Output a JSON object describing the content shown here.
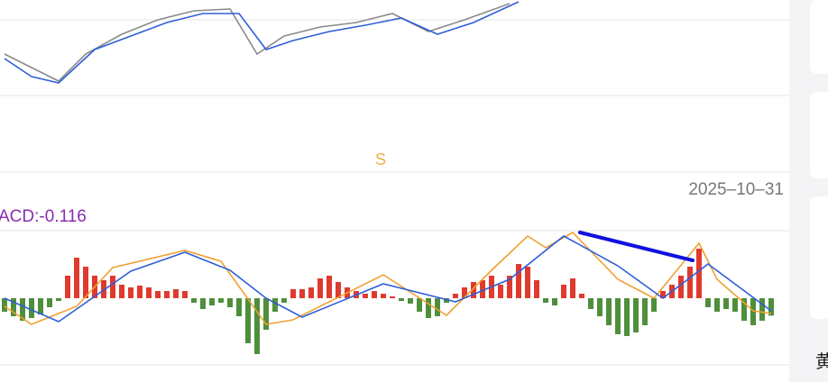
{
  "chart_data": [
    {
      "type": "line",
      "annotations": [
        "S",
        "2025–10–31"
      ],
      "xlim": [
        -0.5,
        85.5
      ],
      "ylim": [
        0,
        110
      ],
      "series": [
        {
          "color": "#8a8a8a",
          "x": [
            0,
            3,
            6,
            9,
            13,
            17,
            21,
            25,
            28,
            31,
            35,
            39,
            43,
            47,
            51,
            56
          ],
          "values": [
            50,
            35,
            20,
            50,
            72,
            88,
            98,
            100,
            50,
            70,
            80,
            85,
            95,
            75,
            88,
            106
          ]
        },
        {
          "color": "#2f5fd8",
          "x": [
            0,
            3,
            6,
            10,
            14,
            18,
            22,
            26,
            29,
            32,
            36,
            40,
            44,
            48,
            52,
            57
          ],
          "values": [
            45,
            25,
            18,
            55,
            70,
            85,
            95,
            95,
            55,
            65,
            75,
            82,
            90,
            72,
            85,
            108
          ]
        }
      ]
    },
    {
      "type": "macd",
      "title": "ACD:-0.116",
      "xlim": [
        -0.5,
        85.5
      ],
      "ylim": [
        -0.444,
        0.444
      ],
      "up_color": "#e03a2e",
      "down_color": "#4f8f3c",
      "values": [
        -0.09,
        -0.12,
        -0.15,
        -0.132,
        -0.108,
        -0.06,
        -0.018,
        0.15,
        0.27,
        0.21,
        0.15,
        0.12,
        0.15,
        0.09,
        0.072,
        0.084,
        0.072,
        0.048,
        0.048,
        0.06,
        0.048,
        -0.03,
        -0.072,
        -0.048,
        -0.03,
        -0.06,
        -0.12,
        -0.3,
        -0.372,
        -0.21,
        -0.09,
        -0.03,
        0.06,
        0.06,
        0.072,
        0.132,
        0.15,
        0.108,
        0.072,
        0.048,
        0.03,
        0.048,
        0.03,
        0.012,
        -0.018,
        -0.036,
        -0.09,
        -0.132,
        -0.12,
        -0.03,
        0.03,
        0.072,
        0.108,
        0.12,
        0.15,
        0.09,
        0.15,
        0.228,
        0.21,
        0.12,
        -0.03,
        -0.048,
        0.09,
        0.132,
        0.03,
        -0.072,
        -0.12,
        -0.18,
        -0.24,
        -0.252,
        -0.228,
        -0.18,
        -0.09,
        0.048,
        0.09,
        0.15,
        0.21,
        0.33,
        -0.06,
        -0.09,
        -0.072,
        -0.09,
        -0.15,
        -0.18,
        -0.15,
        -0.116
      ],
      "series": [
        {
          "color": "#f0a030",
          "x": [
            0,
            3,
            8,
            12,
            20,
            24,
            29,
            32,
            42,
            49,
            54,
            58,
            60,
            63,
            68,
            72,
            77,
            79,
            83,
            85
          ],
          "values": [
            -0.054,
            -0.174,
            -0.054,
            0.204,
            0.318,
            0.246,
            -0.174,
            -0.144,
            0.156,
            -0.114,
            0.186,
            0.414,
            0.336,
            0.438,
            0.126,
            0,
            0.366,
            0.126,
            -0.084,
            -0.102
          ]
        },
        {
          "color": "#2f5fd8",
          "x": [
            0,
            6,
            14,
            20,
            25,
            29,
            33,
            42,
            50,
            56,
            62,
            68,
            73,
            78,
            85
          ],
          "values": [
            0,
            -0.156,
            0.18,
            0.306,
            0.186,
            0,
            -0.126,
            0.096,
            -0.024,
            0.126,
            0.414,
            0.216,
            0,
            0.228,
            -0.084
          ]
        }
      ]
    }
  ],
  "sidebar": {
    "text": "黄"
  }
}
